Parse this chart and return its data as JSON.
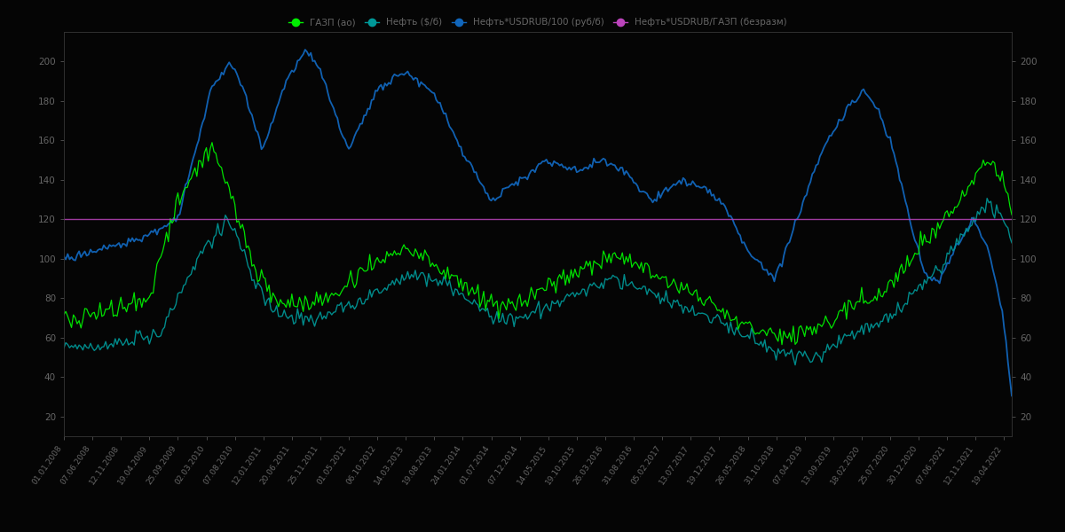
{
  "background_color": "#050505",
  "text_color": "#666666",
  "grid_color": "#1a1a1a",
  "legend_items": [
    {
      "label": "ГАЗП (ао)",
      "color": "#00ee00"
    },
    {
      "label": "Нефть ($/б)",
      "color": "#009999"
    },
    {
      "label": "Нефть*USDRUB/100 (руб/б)",
      "color": "#1166bb"
    },
    {
      "label": "Нефть*USDRUB/ГАЗП (безразм)",
      "color": "#bb44bb"
    }
  ],
  "hline_color": "#bb44bb",
  "left_yticks": [
    20,
    40,
    60,
    80,
    100,
    120,
    140,
    160,
    180,
    200
  ],
  "right_yticks": [
    20,
    40,
    60,
    80,
    100,
    120,
    140,
    160,
    180,
    200
  ],
  "ylim": [
    10,
    215
  ],
  "n_points": 500,
  "seed": 99,
  "blue_keyframes_x": [
    0,
    0.04,
    0.08,
    0.12,
    0.155,
    0.175,
    0.19,
    0.21,
    0.235,
    0.255,
    0.27,
    0.3,
    0.33,
    0.36,
    0.39,
    0.42,
    0.45,
    0.48,
    0.51,
    0.545,
    0.57,
    0.59,
    0.62,
    0.65,
    0.68,
    0.7,
    0.72,
    0.75,
    0.77,
    0.8,
    0.825,
    0.845,
    0.86,
    0.875,
    0.895,
    0.91,
    0.925,
    0.94,
    0.96,
    0.975,
    0.99,
    1.0
  ],
  "blue_keyframes_y": [
    100,
    105,
    110,
    120,
    185,
    200,
    185,
    155,
    190,
    205,
    195,
    155,
    185,
    195,
    185,
    155,
    130,
    140,
    150,
    145,
    150,
    145,
    130,
    140,
    135,
    125,
    105,
    90,
    115,
    155,
    175,
    185,
    175,
    155,
    115,
    90,
    90,
    105,
    120,
    105,
    75,
    30
  ],
  "green_keyframes_x": [
    0,
    0.03,
    0.06,
    0.09,
    0.12,
    0.14,
    0.155,
    0.17,
    0.185,
    0.2,
    0.22,
    0.25,
    0.28,
    0.31,
    0.34,
    0.37,
    0.4,
    0.43,
    0.46,
    0.49,
    0.52,
    0.55,
    0.58,
    0.61,
    0.64,
    0.67,
    0.7,
    0.73,
    0.76,
    0.79,
    0.82,
    0.85,
    0.875,
    0.9,
    0.925,
    0.945,
    0.96,
    0.975,
    0.99,
    1.0
  ],
  "green_keyframes_y": [
    68,
    72,
    75,
    80,
    130,
    145,
    160,
    140,
    120,
    100,
    80,
    75,
    80,
    90,
    100,
    105,
    95,
    85,
    75,
    80,
    90,
    95,
    100,
    95,
    85,
    80,
    70,
    65,
    60,
    65,
    75,
    80,
    90,
    105,
    120,
    130,
    140,
    150,
    140,
    125
  ],
  "teal_keyframes_x": [
    0,
    0.03,
    0.07,
    0.1,
    0.13,
    0.155,
    0.17,
    0.185,
    0.2,
    0.22,
    0.25,
    0.28,
    0.31,
    0.34,
    0.37,
    0.4,
    0.43,
    0.46,
    0.49,
    0.52,
    0.555,
    0.58,
    0.61,
    0.64,
    0.67,
    0.7,
    0.73,
    0.76,
    0.79,
    0.82,
    0.85,
    0.875,
    0.9,
    0.925,
    0.945,
    0.96,
    0.975,
    0.99,
    1.0
  ],
  "teal_keyframes_y": [
    55,
    55,
    58,
    62,
    90,
    110,
    120,
    110,
    90,
    75,
    70,
    72,
    78,
    85,
    92,
    88,
    78,
    70,
    72,
    78,
    85,
    90,
    85,
    78,
    72,
    65,
    58,
    52,
    50,
    58,
    65,
    72,
    85,
    95,
    110,
    120,
    128,
    122,
    110
  ],
  "hline_y": 120,
  "date_start": "2008-01-01",
  "date_end": "2022-06-01",
  "n_xticks": 32
}
